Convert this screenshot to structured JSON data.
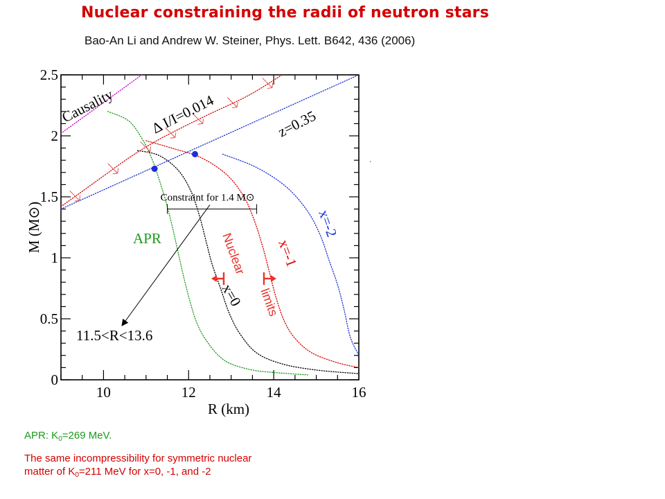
{
  "header": {
    "title": "Nuclear constraining the radii of neutron stars",
    "subtitle": "Bao-An Li and Andrew W. Steiner, Phys. Lett. B642, 436 (2006)",
    "stray_mark": ".",
    "title_color": "#d40000",
    "subtitle_color": "#111111"
  },
  "chart_data": {
    "type": "line",
    "title": "",
    "xlabel": "R (km)",
    "ylabel": "M (M⊙)",
    "xlim": [
      9,
      16
    ],
    "ylim": [
      0,
      2.5
    ],
    "x_ticks": [
      10,
      12,
      14,
      16
    ],
    "x_tick_labels": [
      "10",
      "12",
      "14",
      "16"
    ],
    "y_ticks": [
      0,
      0.5,
      1,
      1.5,
      2,
      2.5
    ],
    "y_tick_labels": [
      "0",
      "0.5",
      "1",
      "1.5",
      "2",
      "2.5"
    ],
    "grid": false,
    "series": [
      {
        "name": "APR",
        "color": "#1a9a1a",
        "style": "dotted",
        "x": [
          10.1,
          10.6,
          10.95,
          11.15,
          11.3,
          11.45,
          11.6,
          11.75,
          11.9,
          12.05,
          12.2,
          12.4,
          12.7,
          13.0,
          13.5,
          14.0,
          14.8
        ],
        "y": [
          2.2,
          2.12,
          1.95,
          1.8,
          1.65,
          1.48,
          1.28,
          1.05,
          0.82,
          0.62,
          0.46,
          0.33,
          0.2,
          0.13,
          0.08,
          0.06,
          0.04
        ]
      },
      {
        "name": "x=0",
        "color": "#000000",
        "style": "dotted",
        "x": [
          10.8,
          11.3,
          11.75,
          12.05,
          12.25,
          12.4,
          12.55,
          12.75,
          12.95,
          13.2,
          13.6,
          14.2,
          15.0,
          16.0
        ],
        "y": [
          1.88,
          1.84,
          1.72,
          1.55,
          1.35,
          1.15,
          0.95,
          0.75,
          0.55,
          0.38,
          0.22,
          0.13,
          0.08,
          0.05
        ]
      },
      {
        "name": "x=-1",
        "color": "#d40000",
        "style": "dotted",
        "x": [
          11.0,
          11.6,
          12.3,
          12.9,
          13.3,
          13.55,
          13.75,
          13.9,
          14.05,
          14.25,
          14.5,
          14.9,
          15.5,
          16.0
        ],
        "y": [
          1.96,
          1.9,
          1.82,
          1.68,
          1.5,
          1.3,
          1.08,
          0.88,
          0.68,
          0.48,
          0.34,
          0.22,
          0.14,
          0.1
        ]
      },
      {
        "name": "x=-2",
        "color": "#1a2fd4",
        "style": "dotted",
        "x": [
          12.8,
          13.6,
          14.3,
          14.8,
          15.1,
          15.3,
          15.5,
          15.65,
          15.8,
          16.0
        ],
        "y": [
          1.85,
          1.74,
          1.58,
          1.38,
          1.18,
          0.98,
          0.78,
          0.58,
          0.35,
          0.2
        ]
      },
      {
        "name": "Causality",
        "color": "#cc00cc",
        "style": "dotted",
        "x": [
          9.0,
          10.9
        ],
        "y": [
          2.02,
          2.5
        ]
      },
      {
        "name": "z=0.35",
        "color": "#1a2fd4",
        "style": "dotted",
        "x": [
          9.0,
          16.0
        ],
        "y": [
          1.4,
          2.5
        ]
      },
      {
        "name": "Δ I/I=0.014",
        "color": "#d40000",
        "style": "dotted",
        "x": [
          9.0,
          9.8,
          10.6,
          11.2,
          11.8,
          12.5,
          13.4,
          14.2
        ],
        "y": [
          1.42,
          1.62,
          1.82,
          1.95,
          2.06,
          2.18,
          2.33,
          2.5
        ]
      }
    ],
    "markers": [
      {
        "x": 11.2,
        "y": 1.73,
        "color": "#1a2fd4"
      },
      {
        "x": 12.15,
        "y": 1.85,
        "color": "#1a2fd4"
      }
    ],
    "constraint": {
      "label": "Constraint for 1.4 M⊙",
      "y": 1.4,
      "x_range": [
        11.5,
        13.6
      ],
      "radius_label": "11.5<R<13.6"
    },
    "annotations": {
      "causality": "Causality",
      "delta_i": "Δ I/I=0.014",
      "z": "z=0.35",
      "x_minus2": "x=-2",
      "x_minus1": "x=-1",
      "x_zero": "x=0",
      "apr": "APR",
      "nuclear": "Nuclear",
      "limits": "limits"
    }
  },
  "notes": {
    "apr_prefix": "APR: K",
    "apr_sub": "0",
    "apr_suffix": "=269 MeV.",
    "k_line1": "The same incompressibility for symmetric nuclear",
    "k_line2_prefix": "matter of K",
    "k_line2_sub": "0",
    "k_line2_suffix": "=211 MeV for x=0, -1, and -2",
    "apr_color": "#1a9a1a",
    "k_color": "#d40000"
  }
}
